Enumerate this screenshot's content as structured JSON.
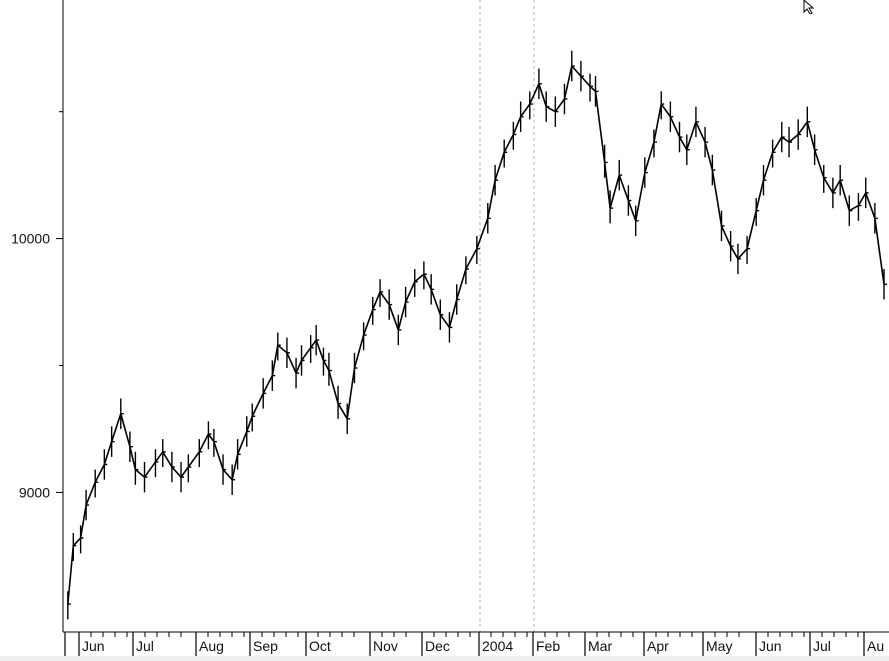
{
  "colors": {
    "background": "#ffffff",
    "bars": "#000000",
    "axis": "#000000",
    "separator": "#b4b4b4",
    "strip": "#eeeeee"
  },
  "cursor": {
    "icon": "mouse-pointer-icon"
  },
  "chart_data": {
    "type": "ohlc-bar",
    "title": "",
    "xlabel": "",
    "ylabel": "",
    "ylim": [
      8450,
      10940
    ],
    "y_ticks": [
      {
        "value": 9000,
        "label": "9000"
      },
      {
        "value": 10000,
        "label": "10000"
      }
    ],
    "x_labels": [
      "Jun",
      "Jul",
      "Aug",
      "Sep",
      "Oct",
      "Nov",
      "Dec",
      "2004",
      "Feb",
      "Mar",
      "Apr",
      "May",
      "Jun",
      "Jul",
      "Au"
    ],
    "separators": [
      "2004",
      "Feb"
    ],
    "grid": false,
    "series": [
      {
        "x": [
          "2003-05-20",
          "2003-05-23",
          "2003-05-27",
          "2003-05-30",
          "2003-06-04",
          "2003-06-09",
          "2003-06-13",
          "2003-06-18",
          "2003-06-23",
          "2003-06-26",
          "2003-07-01",
          "2003-07-07",
          "2003-07-11",
          "2003-07-16",
          "2003-07-21",
          "2003-07-25",
          "2003-07-31",
          "2003-08-05",
          "2003-08-08",
          "2003-08-13",
          "2003-08-18",
          "2003-08-21",
          "2003-08-26",
          "2003-08-29",
          "2003-09-04",
          "2003-09-09",
          "2003-09-12",
          "2003-09-17",
          "2003-09-22",
          "2003-09-25",
          "2003-09-30",
          "2003-10-03",
          "2003-10-07",
          "2003-10-10",
          "2003-10-15",
          "2003-10-20",
          "2003-10-24",
          "2003-10-29",
          "2003-11-03",
          "2003-11-07",
          "2003-11-12",
          "2003-11-17",
          "2003-11-21",
          "2003-11-26",
          "2003-12-01",
          "2003-12-05",
          "2003-12-10",
          "2003-12-15",
          "2003-12-19",
          "2003-12-24",
          "2003-12-30",
          "2004-01-05",
          "2004-01-09",
          "2004-01-14",
          "2004-01-19",
          "2004-01-23",
          "2004-01-28",
          "2004-02-02",
          "2004-02-06",
          "2004-02-11",
          "2004-02-16",
          "2004-02-20",
          "2004-02-25",
          "2004-03-01",
          "2004-03-04",
          "2004-03-09",
          "2004-03-12",
          "2004-03-17",
          "2004-03-22",
          "2004-03-26",
          "2004-03-31",
          "2004-04-05",
          "2004-04-09",
          "2004-04-14",
          "2004-04-19",
          "2004-04-23",
          "2004-04-28",
          "2004-05-03",
          "2004-05-07",
          "2004-05-12",
          "2004-05-17",
          "2004-05-21",
          "2004-05-26",
          "2004-05-31",
          "2004-06-04",
          "2004-06-09",
          "2004-06-14",
          "2004-06-18",
          "2004-06-23",
          "2004-06-28",
          "2004-07-02",
          "2004-07-07",
          "2004-07-12",
          "2004-07-16",
          "2004-07-21",
          "2004-07-26",
          "2004-07-30",
          "2004-08-04",
          "2004-08-09"
        ],
        "close": [
          8560,
          8790,
          8820,
          8950,
          9040,
          9110,
          9200,
          9310,
          9180,
          9090,
          9060,
          9120,
          9160,
          9100,
          9060,
          9100,
          9160,
          9230,
          9200,
          9090,
          9050,
          9150,
          9240,
          9300,
          9390,
          9460,
          9580,
          9550,
          9470,
          9520,
          9570,
          9600,
          9520,
          9480,
          9350,
          9290,
          9490,
          9620,
          9720,
          9790,
          9740,
          9640,
          9750,
          9830,
          9860,
          9800,
          9700,
          9650,
          9760,
          9880,
          9960,
          10080,
          10230,
          10340,
          10410,
          10480,
          10530,
          10610,
          10520,
          10500,
          10550,
          10680,
          10640,
          10600,
          10580,
          10300,
          10120,
          10250,
          10150,
          10070,
          10260,
          10380,
          10530,
          10480,
          10400,
          10350,
          10460,
          10380,
          10270,
          10050,
          9970,
          9920,
          9960,
          10110,
          10230,
          10340,
          10400,
          10380,
          10410,
          10460,
          10350,
          10240,
          10180,
          10230,
          10110,
          10130,
          10180,
          10080,
          9820
        ],
        "high": [
          8610,
          8840,
          8870,
          9010,
          9090,
          9170,
          9260,
          9370,
          9240,
          9160,
          9120,
          9170,
          9210,
          9160,
          9120,
          9150,
          9210,
          9280,
          9250,
          9150,
          9110,
          9210,
          9300,
          9350,
          9450,
          9520,
          9630,
          9610,
          9530,
          9580,
          9620,
          9660,
          9570,
          9550,
          9420,
          9350,
          9550,
          9670,
          9770,
          9840,
          9800,
          9700,
          9810,
          9880,
          9910,
          9860,
          9760,
          9710,
          9820,
          9930,
          10010,
          10140,
          10290,
          10390,
          10460,
          10540,
          10580,
          10670,
          10580,
          10560,
          10610,
          10740,
          10700,
          10650,
          10640,
          10370,
          10190,
          10310,
          10210,
          10130,
          10320,
          10430,
          10580,
          10540,
          10460,
          10410,
          10520,
          10440,
          10330,
          10110,
          10030,
          9980,
          10010,
          10160,
          10290,
          10390,
          10460,
          10440,
          10470,
          10520,
          10410,
          10290,
          10240,
          10290,
          10170,
          10180,
          10240,
          10140,
          9880
        ],
        "low": [
          8500,
          8730,
          8760,
          8890,
          8980,
          9050,
          9140,
          9250,
          9120,
          9030,
          9000,
          9060,
          9100,
          9040,
          9000,
          9040,
          9100,
          9170,
          9140,
          9030,
          8990,
          9090,
          9180,
          9240,
          9330,
          9400,
          9520,
          9490,
          9410,
          9460,
          9510,
          9540,
          9460,
          9420,
          9290,
          9230,
          9430,
          9560,
          9660,
          9730,
          9680,
          9580,
          9690,
          9770,
          9800,
          9740,
          9640,
          9590,
          9700,
          9820,
          9900,
          10020,
          10170,
          10280,
          10350,
          10420,
          10470,
          10550,
          10460,
          10440,
          10490,
          10620,
          10580,
          10540,
          10520,
          10240,
          10060,
          10190,
          10090,
          10010,
          10200,
          10320,
          10470,
          10420,
          10340,
          10290,
          10400,
          10320,
          10210,
          9990,
          9910,
          9860,
          9900,
          10050,
          10170,
          10280,
          10340,
          10320,
          10350,
          10400,
          10290,
          10180,
          10120,
          10170,
          10050,
          10070,
          10120,
          10020,
          9760
        ]
      }
    ]
  }
}
